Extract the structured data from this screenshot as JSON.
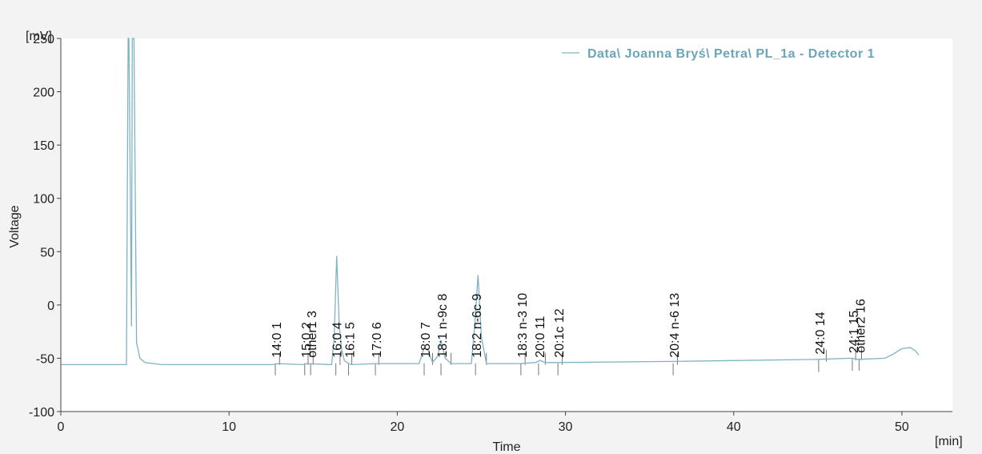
{
  "chart_data": {
    "type": "line",
    "title": "",
    "xlabel": "Time",
    "xunit": "[min]",
    "ylabel": "Voltage",
    "yunit": "[mV]",
    "xlim": [
      0,
      53
    ],
    "ylim": [
      -100,
      250
    ],
    "xticks": [
      "0",
      "10",
      "20",
      "30",
      "40",
      "50"
    ],
    "yticks": [
      "-100",
      "-50",
      "0",
      "50",
      "100",
      "150",
      "200",
      "250"
    ],
    "grid": false,
    "legend_position": "top-right",
    "series": [
      {
        "name": "Data\\ Joanna Bryś\\ Petra\\ PL_1a - Detector 1",
        "color": "#7fb3c2",
        "x": [
          0,
          3.9,
          4.0,
          4.05,
          4.2,
          4.25,
          4.35,
          4.5,
          4.7,
          5.0,
          6.0,
          10,
          12.6,
          12.9,
          14.4,
          14.6,
          16.1,
          16.25,
          16.4,
          16.55,
          16.7,
          16.85,
          17.1,
          17.3,
          18.7,
          21.3,
          21.6,
          21.85,
          22.1,
          22.4,
          22.6,
          22.85,
          23.2,
          24.4,
          24.6,
          24.8,
          25.0,
          25.3,
          27.2,
          28.2,
          28.5,
          28.8,
          29.5,
          36.3,
          45.0,
          47.0,
          47.4,
          49.0,
          49.5,
          50.0,
          50.5,
          50.8,
          51.0
        ],
        "values": [
          -56,
          -56,
          250,
          250,
          -20,
          250,
          250,
          -35,
          -50,
          -54,
          -56,
          -56,
          -56,
          -55,
          -56,
          -55,
          -56,
          -30,
          46,
          -20,
          -42,
          -52,
          -55,
          -56,
          -55,
          -55,
          -40,
          -43,
          -54,
          -48,
          -33,
          -50,
          -55,
          -55,
          -20,
          28,
          -30,
          -55,
          -55,
          -54,
          -52,
          -54,
          -54,
          -53,
          -51,
          -50,
          -51,
          -50,
          -46,
          -41,
          -40,
          -43,
          -47
        ]
      }
    ],
    "peaks": [
      {
        "label": "14:0  1",
        "x": 12.75,
        "x2": 13.0
      },
      {
        "label": "15:0  2",
        "x": 14.5,
        "x2": 14.7
      },
      {
        "label": "other1  3",
        "x": 14.85,
        "x2": 15.0
      },
      {
        "label": "16:0  4",
        "x": 16.35,
        "x2": 16.6
      },
      {
        "label": "16:1  5",
        "x": 17.1,
        "x2": 17.3
      },
      {
        "label": "17:0  6",
        "x": 18.7,
        "x2": 18.9
      },
      {
        "label": "18:0  7",
        "x": 21.6,
        "x2": 22.1
      },
      {
        "label": "18:1 n-9c  8",
        "x": 22.6,
        "x2": 23.2
      },
      {
        "label": "18:2 n-6c  9",
        "x": 24.65,
        "x2": 25.3
      },
      {
        "label": "18:3 n-3  10",
        "x": 27.35,
        "x2": 27.6
      },
      {
        "label": "20:0  11",
        "x": 28.4,
        "x2": 28.8
      },
      {
        "label": "20:1c  12",
        "x": 29.55,
        "x2": 29.8
      },
      {
        "label": "20:4 n-6  13",
        "x": 36.4,
        "x2": 36.65
      },
      {
        "label": "24:0  14",
        "x": 45.05,
        "x2": 45.5
      },
      {
        "label": "24:1  15",
        "x": 47.05,
        "x2": 47.25
      },
      {
        "label": "other2  16",
        "x": 47.45,
        "x2": 47.6
      }
    ]
  }
}
